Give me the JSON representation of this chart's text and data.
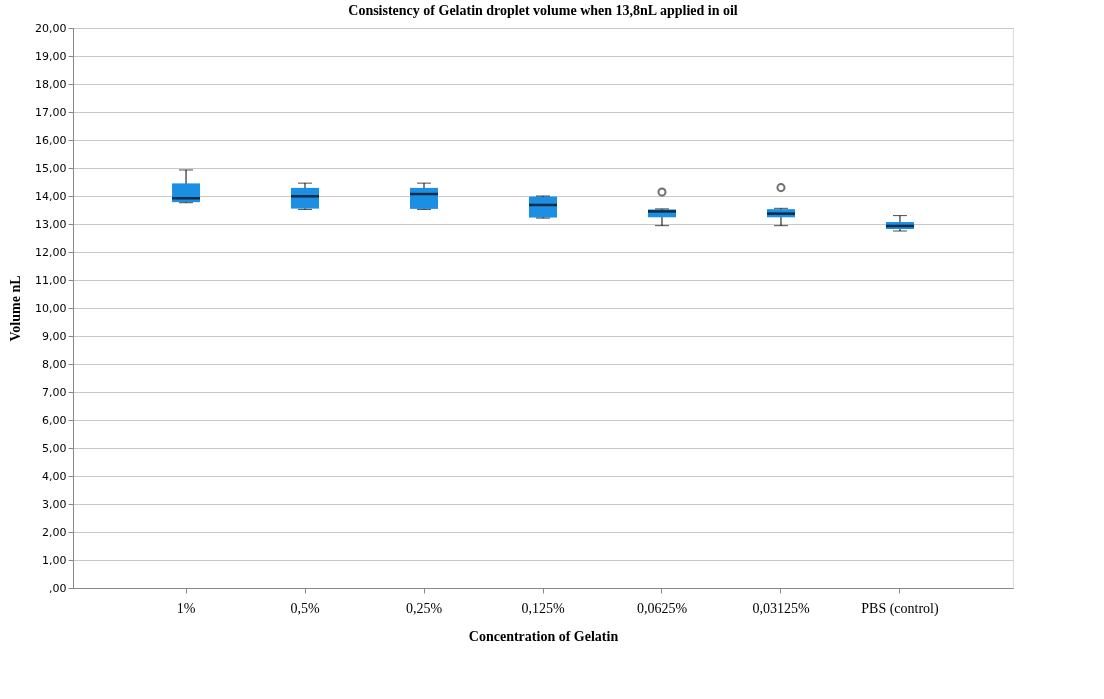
{
  "chart_data": {
    "type": "box",
    "title": "Consistency of Gelatin droplet volume when 13,8nL applied in oil",
    "xlabel": "Concentration of Gelatin",
    "ylabel": "Volume nL",
    "categories": [
      "1%",
      "0,5%",
      "0,25%",
      "0,125%",
      "0,0625%",
      "0,03125%",
      "PBS (control)"
    ],
    "color": "#1a8fe3",
    "boxes": [
      {
        "low": 13.76,
        "q1": 13.78,
        "median": 13.92,
        "q3": 14.45,
        "high": 14.93
      },
      {
        "low": 13.52,
        "q1": 13.55,
        "median": 13.99,
        "q3": 14.29,
        "high": 14.46
      },
      {
        "low": 13.52,
        "q1": 13.54,
        "median": 14.07,
        "q3": 14.29,
        "high": 14.46
      },
      {
        "low": 13.21,
        "q1": 13.23,
        "median": 13.68,
        "q3": 13.98,
        "high": 14.0
      },
      {
        "low": 12.94,
        "q1": 13.24,
        "median": 13.45,
        "q3": 13.52,
        "high": 13.54,
        "outliers": [
          14.14
        ]
      },
      {
        "low": 12.94,
        "q1": 13.24,
        "median": 13.37,
        "q3": 13.53,
        "high": 13.56,
        "outliers": [
          14.3
        ]
      },
      {
        "low": 12.75,
        "q1": 12.82,
        "median": 12.93,
        "q3": 13.07,
        "high": 13.3
      }
    ],
    "ylim": [
      0,
      20
    ],
    "yticks": [
      {
        "value": 0,
        "label": ",00"
      },
      {
        "value": 1,
        "label": "1,00"
      },
      {
        "value": 2,
        "label": "2,00"
      },
      {
        "value": 3,
        "label": "3,00"
      },
      {
        "value": 4,
        "label": "4,00"
      },
      {
        "value": 5,
        "label": "5,00"
      },
      {
        "value": 6,
        "label": "6,00"
      },
      {
        "value": 7,
        "label": "7,00"
      },
      {
        "value": 8,
        "label": "8,00"
      },
      {
        "value": 9,
        "label": "9,00"
      },
      {
        "value": 10,
        "label": "10,00"
      },
      {
        "value": 11,
        "label": "11,00"
      },
      {
        "value": 12,
        "label": "12,00"
      },
      {
        "value": 13,
        "label": "13,00"
      },
      {
        "value": 14,
        "label": "14,00"
      },
      {
        "value": 15,
        "label": "15,00"
      },
      {
        "value": 16,
        "label": "16,00"
      },
      {
        "value": 17,
        "label": "17,00"
      },
      {
        "value": 18,
        "label": "18,00"
      },
      {
        "value": 19,
        "label": "19,00"
      },
      {
        "value": 20,
        "label": "20,00"
      }
    ],
    "grid": "y",
    "legend": false
  }
}
